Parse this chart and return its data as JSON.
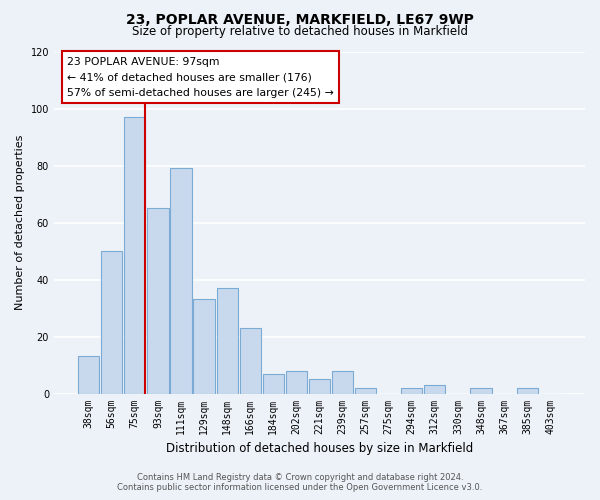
{
  "title": "23, POPLAR AVENUE, MARKFIELD, LE67 9WP",
  "subtitle": "Size of property relative to detached houses in Markfield",
  "xlabel": "Distribution of detached houses by size in Markfield",
  "ylabel": "Number of detached properties",
  "bar_labels": [
    "38sqm",
    "56sqm",
    "75sqm",
    "93sqm",
    "111sqm",
    "129sqm",
    "148sqm",
    "166sqm",
    "184sqm",
    "202sqm",
    "221sqm",
    "239sqm",
    "257sqm",
    "275sqm",
    "294sqm",
    "312sqm",
    "330sqm",
    "348sqm",
    "367sqm",
    "385sqm",
    "403sqm"
  ],
  "bar_values": [
    13,
    50,
    97,
    65,
    79,
    33,
    37,
    23,
    7,
    8,
    5,
    8,
    2,
    0,
    2,
    3,
    0,
    2,
    0,
    2,
    0
  ],
  "bar_color": "#c8d9ee",
  "bar_edge_color": "#7baad4",
  "ylim": [
    0,
    120
  ],
  "yticks": [
    0,
    20,
    40,
    60,
    80,
    100,
    120
  ],
  "property_line_color": "#cc0000",
  "annotation_title": "23 POPLAR AVENUE: 97sqm",
  "annotation_line1": "← 41% of detached houses are smaller (176)",
  "annotation_line2": "57% of semi-detached houses are larger (245) →",
  "annotation_box_color": "#cc0000",
  "footer_line1": "Contains HM Land Registry data © Crown copyright and database right 2024.",
  "footer_line2": "Contains public sector information licensed under the Open Government Licence v3.0.",
  "bg_color": "#edf2f9"
}
